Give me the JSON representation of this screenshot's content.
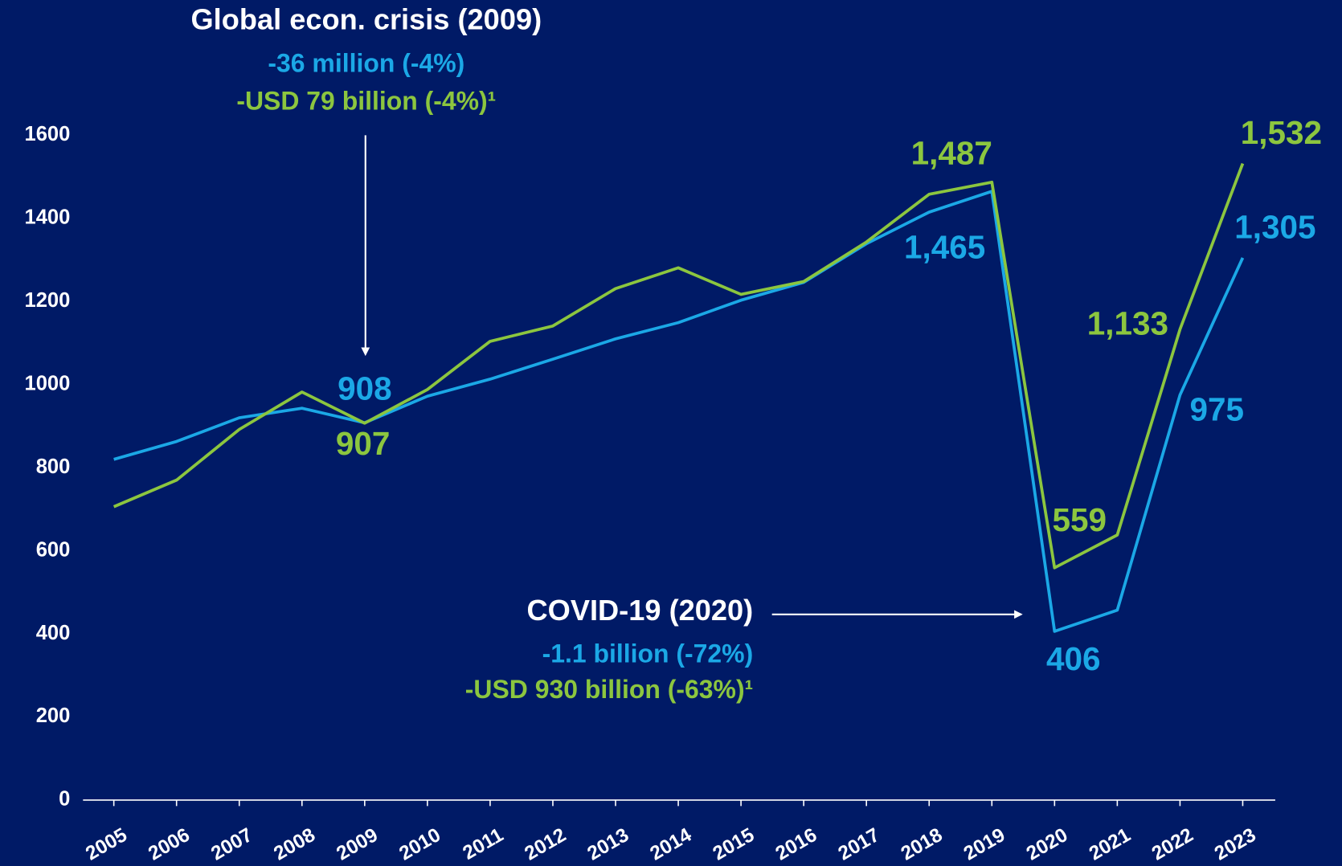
{
  "chart_data": {
    "type": "line",
    "categories": [
      "2005",
      "2006",
      "2007",
      "2008",
      "2009",
      "2010",
      "2011",
      "2012",
      "2013",
      "2014",
      "2015",
      "2016",
      "2017",
      "2018",
      "2019",
      "2020",
      "2021",
      "2022",
      "2023"
    ],
    "series": [
      {
        "color": "#1ba8e6",
        "values": [
          820,
          863,
          920,
          943,
          908,
          972,
          1013,
          1061,
          1110,
          1149,
          1203,
          1246,
          1339,
          1415,
          1465,
          406,
          457,
          975,
          1305
        ],
        "value_labels": [
          null,
          null,
          null,
          null,
          "908",
          null,
          null,
          null,
          null,
          null,
          null,
          null,
          null,
          null,
          "1,465",
          "406",
          null,
          "975",
          "1,305"
        ]
      },
      {
        "color": "#8cc63f",
        "values": [
          706,
          770,
          892,
          982,
          907,
          988,
          1104,
          1141,
          1231,
          1281,
          1217,
          1248,
          1343,
          1458,
          1487,
          559,
          638,
          1133,
          1532
        ],
        "value_labels": [
          null,
          null,
          null,
          null,
          "907",
          null,
          null,
          null,
          null,
          null,
          null,
          null,
          null,
          null,
          "1,487",
          "559",
          null,
          "1,133",
          "1,532"
        ]
      }
    ],
    "ylim": [
      0,
      1600
    ],
    "yticks": [
      0,
      200,
      400,
      600,
      800,
      1000,
      1200,
      1400,
      1600
    ],
    "grid": false,
    "annotations": [
      {
        "title": "Global econ. crisis (2009)",
        "lines": [
          "-36 million (-4%)",
          "-USD 79 billion (-4%)¹"
        ]
      },
      {
        "title": "COVID-19 (2020)",
        "lines": [
          "-1.1 billion (-72%)",
          "-USD 930 billion (-63%)¹"
        ]
      }
    ]
  }
}
